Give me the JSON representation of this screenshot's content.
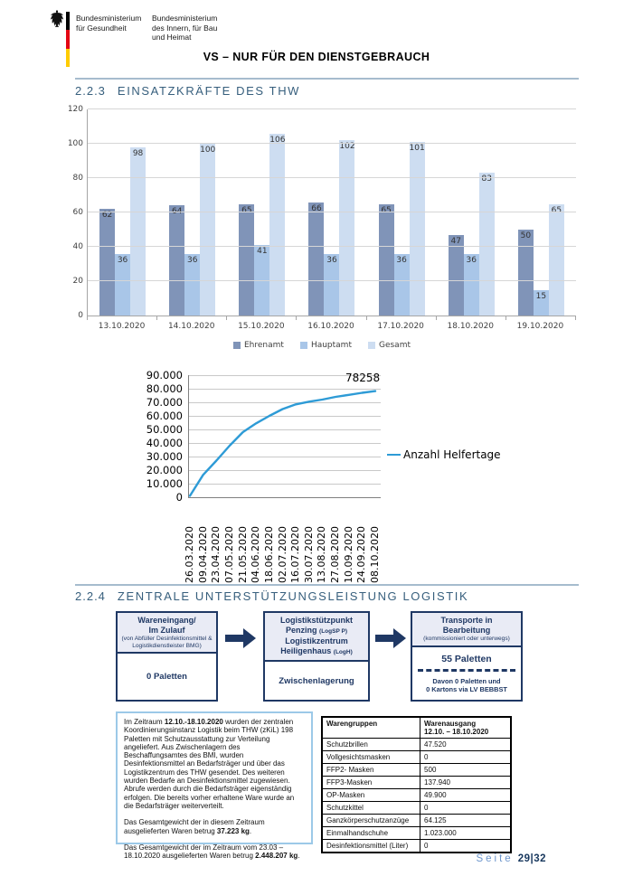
{
  "header": {
    "ministry1": "Bundesministerium\nfür Gesundheit",
    "ministry2": "Bundesministerium\ndes Innern, für Bau\nund Heimat",
    "classification": "VS – NUR FÜR DEN DIENSTGEBRAUCH"
  },
  "sections": {
    "s223": {
      "number": "2.2.3",
      "title": "EINSATZKRÄFTE DES THW"
    },
    "s224": {
      "number": "2.2.4",
      "title": "ZENTRALE UNTERSTÜTZUNGSLEISTUNG LOGISTIK"
    }
  },
  "chart_data": [
    {
      "type": "bar",
      "categories": [
        "13.10.2020",
        "14.10.2020",
        "15.10.2020",
        "16.10.2020",
        "17.10.2020",
        "18.10.2020",
        "19.10.2020"
      ],
      "series": [
        {
          "name": "Ehrenamt",
          "color": "#8094b8",
          "values": [
            62,
            64,
            65,
            66,
            65,
            47,
            50
          ]
        },
        {
          "name": "Hauptamt",
          "color": "#a9c6e8",
          "values": [
            36,
            36,
            41,
            36,
            36,
            36,
            15
          ]
        },
        {
          "name": "Gesamt",
          "color": "#cdddf1",
          "values": [
            98,
            100,
            106,
            102,
            101,
            83,
            65
          ]
        }
      ],
      "ylim": [
        0,
        120
      ],
      "yticks": [
        0,
        20,
        40,
        60,
        80,
        100,
        120
      ],
      "grid": true,
      "legend_position": "bottom",
      "title": "",
      "xlabel": "",
      "ylabel": ""
    },
    {
      "type": "line",
      "x": [
        "26.03.2020",
        "09.04.2020",
        "23.04.2020",
        "07.05.2020",
        "21.05.2020",
        "04.06.2020",
        "18.06.2020",
        "02.07.2020",
        "16.07.2020",
        "30.07.2020",
        "13.08.2020",
        "27.08.2020",
        "10.09.2020",
        "24.09.2020",
        "08.10.2020"
      ],
      "series": [
        {
          "name": "Anzahl Helfertage",
          "color": "#2e9bd6",
          "values": [
            1000,
            16500,
            27000,
            38000,
            48000,
            54500,
            60000,
            65000,
            68500,
            70500,
            72000,
            74000,
            75500,
            77000,
            78258
          ]
        }
      ],
      "ylim": [
        0,
        90000
      ],
      "ytick_labels": [
        "90.000",
        "80.000",
        "70.000",
        "60.000",
        "50.000",
        "40.000",
        "30.000",
        "20.000",
        "10.000",
        "0"
      ],
      "end_label": "78258",
      "grid": true,
      "legend_position": "right",
      "title": "",
      "xlabel": "",
      "ylabel": ""
    }
  ],
  "flow": {
    "box1": {
      "title": "Wareneingang/\nIm Zulauf",
      "subtitle": "(von Abfüller Desinfektionsmittel &\nLogistikdienstleister BMG)",
      "body": "0 Paletten"
    },
    "box2": {
      "line1": "Logistikstützpunkt",
      "line2_main": "Penzing",
      "line2_small": "(LogSP P)",
      "line3": "Logistikzentrum",
      "line4_main": "Heiligenhaus",
      "line4_small": "(LogH)",
      "body": "Zwischenlagerung"
    },
    "box3": {
      "title": "Transporte in\nBearbeitung",
      "subtitle": "(kommissioniert oder unterwegs)",
      "body": "55 Paletten",
      "note": "Davon 0 Paletten und\n0 Kartons via LV BEBBST"
    }
  },
  "infobox": {
    "p1": {
      "pre": "Im Zeitraum ",
      "bold": "12.10.-18.10.2020",
      "post": " wurden der zentralen Koordinierungsinstanz Logistik beim THW (zKiL) 198 Paletten mit Schutzausstattung zur Verteilung angeliefert. Aus Zwischenlagern des Beschaffungsamtes des BMI, wurden Desinfektionsmittel an Bedarfsträger und über das Logistikzentrum des THW gesendet. Des weiteren wurden Bedarfe an Desinfektionsmittel zugewiesen. Abrufe werden durch die Bedarfsträger eigenständig erfolgen. Die bereits vorher erhaltene Ware wurde an die Bedarfsträger weiterverteilt."
    },
    "p2": {
      "pre": "Das Gesamtgewicht der in diesem Zeitraum ausgelieferten Waren betrug ",
      "bold": "37.223 kg",
      "post": "."
    },
    "p3": {
      "pre": "Das Gesamtgewicht der im Zeitraum vom 23.03 – 18.10.2020 ausgelieferten Waren betrug ",
      "bold": "2.448.207 kg",
      "post": "."
    }
  },
  "table": {
    "headers": [
      "Warengruppen",
      "Warenausgang\n12.10. – 18.10.2020"
    ],
    "rows": [
      [
        "Schutzbrillen",
        "47.520"
      ],
      [
        "Vollgesichtsmasken",
        "0"
      ],
      [
        "FFP2- Masken",
        "500"
      ],
      [
        "FFP3-Masken",
        "137.940"
      ],
      [
        "OP-Masken",
        "49.900"
      ],
      [
        "Schutzkittel",
        "0"
      ],
      [
        "Ganzkörperschutzanzüge",
        "64.125"
      ],
      [
        "Einmalhandschuhe",
        "1.023.000"
      ],
      [
        "Desinfektionsmittel (Liter)",
        "0"
      ]
    ]
  },
  "footer": {
    "label": "Seite",
    "page": "29|32"
  },
  "colors": {
    "accent_navy": "#1f3864",
    "heading_blue": "#375f7d",
    "line_blue": "#2e9bd6",
    "bar_ehrenamt": "#8094b8",
    "bar_hauptamt": "#a9c6e8",
    "bar_gesamt": "#cdddf1"
  }
}
